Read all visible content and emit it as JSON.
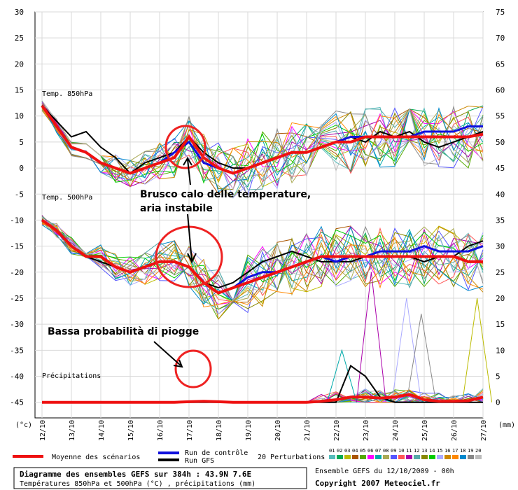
{
  "chart_data": {
    "type": "line",
    "title": "Diagramme des ensembles GEFS sur 384h : 43.9N 7.6E",
    "subtitle": "Températures 850hPa et 500hPa (°C) , précipitations (mm)",
    "ylabel_left": "(°c)",
    "ylabel_right": "(mm)",
    "ylim_left": [
      -48,
      30
    ],
    "ylim_right": [
      0,
      75
    ],
    "yticks_left": [
      "30",
      "25",
      "20",
      "15",
      "10",
      "5",
      "0",
      "-5",
      "-10",
      "-15",
      "-20",
      "-25",
      "-30",
      "-35",
      "-40",
      "-45"
    ],
    "yticks_right": [
      "75",
      "70",
      "65",
      "60",
      "55",
      "50",
      "45",
      "40",
      "35",
      "30",
      "25",
      "20",
      "15",
      "10",
      "5",
      "0"
    ],
    "x_labels": [
      "12/10",
      "13/10",
      "14/10",
      "15/10",
      "16/10",
      "17/10",
      "18/10",
      "19/10",
      "20/10",
      "21/10",
      "22/10",
      "23/10",
      "24/10",
      "25/10",
      "26/10",
      "27/10"
    ],
    "series_labels": {
      "t850": "Temp. 850hPa",
      "t500": "Temp. 500hPa",
      "precip": "Précipitations"
    },
    "legend": {
      "mean": "Moyenne des scénarios",
      "control": "Run de contrôle",
      "gfs": "Run GFS",
      "perturbations": "20 Perturbations",
      "member_numbers": [
        "01",
        "02",
        "03",
        "04",
        "05",
        "06",
        "07",
        "08",
        "09",
        "10",
        "11",
        "12",
        "13",
        "14",
        "15",
        "16",
        "17",
        "18",
        "19",
        "20"
      ],
      "member_colors": [
        "#55bbbb",
        "#00aa55",
        "#bbbb00",
        "#aa5500",
        "#55aa00",
        "#ff00ff",
        "#00aaaa",
        "#aaaa55",
        "#5555ff",
        "#ff5555",
        "#aa00aa",
        "#55aaaa",
        "#888800",
        "#00cc00",
        "#aaaaff",
        "#cc8800",
        "#ff8800",
        "#0088cc",
        "#888888",
        "#bbbbbb"
      ],
      "mean_color": "#ee1111",
      "control_color": "#1111dd",
      "gfs_color": "#000000"
    },
    "ensemble_info": "Ensemble GEFS du 12/10/2009 - 00h",
    "copyright": "Copyright 2007 Meteociel.fr",
    "annotations": [
      "Brusco calo delle temperature,",
      "aria instabile",
      "Bassa probabilità di piogge"
    ],
    "days": [
      0,
      0.5,
      1,
      1.5,
      2,
      2.5,
      3,
      3.5,
      4,
      4.5,
      5,
      5.5,
      6,
      6.5,
      7,
      7.5,
      8,
      8.5,
      9,
      9.5,
      10,
      10.5,
      11,
      11.5,
      12,
      12.5,
      13,
      13.5,
      14,
      14.5,
      15
    ],
    "t850_mean": [
      12,
      8,
      4,
      3,
      1,
      0,
      -1,
      0,
      1,
      2,
      6,
      2,
      0,
      -1,
      0,
      1,
      2,
      3,
      3,
      4,
      5,
      5,
      6,
      6,
      6,
      6,
      6,
      6,
      6,
      6,
      6.5
    ],
    "t850_control": [
      12,
      8,
      4,
      3,
      1,
      0,
      -1,
      0,
      1,
      3,
      5,
      1,
      0,
      -1,
      0,
      1,
      2,
      3,
      3,
      4,
      5,
      6,
      6,
      6,
      6,
      6,
      7,
      7,
      7,
      8,
      8
    ],
    "t850_gfs": [
      12,
      9,
      6,
      7,
      4,
      2,
      -1,
      1,
      2,
      3,
      6,
      3,
      1,
      0,
      0,
      1,
      2,
      3,
      3,
      4,
      5,
      6,
      5,
      7,
      6,
      7,
      5,
      4,
      5,
      6,
      7
    ],
    "t500_mean": [
      -10,
      -12,
      -15,
      -17,
      -17,
      -19,
      -20,
      -19,
      -18,
      -18,
      -19,
      -22,
      -24,
      -23,
      -22,
      -21,
      -20,
      -19,
      -18,
      -17,
      -17,
      -17,
      -17,
      -17,
      -17,
      -17,
      -17,
      -17,
      -17,
      -18,
      -18
    ],
    "t500_control": [
      -10,
      -12,
      -15,
      -17,
      -17,
      -19,
      -20,
      -19,
      -18,
      -18,
      -19,
      -22,
      -24,
      -23,
      -21,
      -20,
      -20,
      -19,
      -18,
      -17,
      -18,
      -17,
      -17,
      -16,
      -16,
      -16,
      -15,
      -16,
      -16,
      -16,
      -15
    ],
    "t500_gfs": [
      -10,
      -12,
      -15,
      -17,
      -18,
      -19,
      -20,
      -19,
      -18,
      -18,
      -19,
      -22,
      -23,
      -22,
      -20,
      -18,
      -17,
      -16,
      -17,
      -18,
      -18,
      -18,
      -17,
      -17,
      -17,
      -17,
      -18,
      -17,
      -17,
      -15,
      -14
    ],
    "precip_mean": [
      0,
      0,
      0,
      0,
      0,
      0,
      0,
      0,
      0,
      0,
      0.1,
      0.2,
      0.1,
      0,
      0,
      0,
      0,
      0,
      0,
      0.2,
      0.5,
      1,
      1,
      0.8,
      1,
      1.5,
      0.5,
      0.2,
      0.2,
      0.3,
      1
    ],
    "precip_gfs": [
      0,
      0,
      0,
      0,
      0,
      0,
      0,
      0,
      0,
      0,
      0,
      0,
      0,
      0,
      0,
      0,
      0,
      0,
      0,
      0,
      0,
      7,
      5,
      1,
      0,
      0,
      0,
      0,
      0,
      0,
      0
    ],
    "precip_member_peaks": [
      {
        "day": 10.2,
        "mm": 10
      },
      {
        "day": 11.2,
        "mm": 25
      },
      {
        "day": 12.4,
        "mm": 20
      },
      {
        "day": 12.9,
        "mm": 17
      },
      {
        "day": 14.8,
        "mm": 20
      }
    ]
  }
}
